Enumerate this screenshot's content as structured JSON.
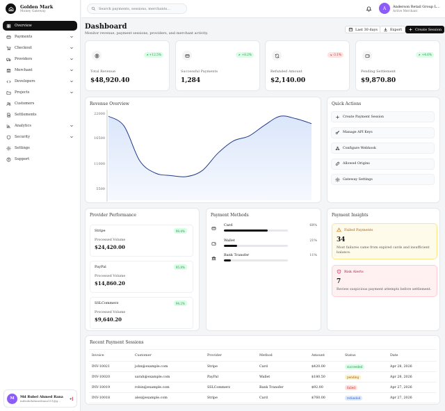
{
  "brand": {
    "name": "Golden Mark",
    "subtitle": "Money Gateway"
  },
  "nav": [
    {
      "label": "Overview",
      "icon": "grid-icon",
      "active": true,
      "chevron": false
    },
    {
      "label": "Payments",
      "icon": "credit-card-icon",
      "chevron": true
    },
    {
      "label": "Checkout",
      "icon": "cart-icon",
      "chevron": true
    },
    {
      "label": "Providers",
      "icon": "truck-icon",
      "chevron": true
    },
    {
      "label": "Merchant",
      "icon": "store-icon",
      "chevron": true
    },
    {
      "label": "Developers",
      "icon": "code-icon",
      "chevron": true
    },
    {
      "label": "Projects",
      "icon": "folder-icon",
      "chevron": true
    },
    {
      "label": "Customers",
      "icon": "users-icon",
      "chevron": false
    },
    {
      "label": "Settlements",
      "icon": "file-icon",
      "chevron": false
    },
    {
      "label": "Analytics",
      "icon": "chart-icon",
      "chevron": true
    },
    {
      "label": "Security",
      "icon": "shield-icon",
      "chevron": true
    },
    {
      "label": "Settings",
      "icon": "gear-icon",
      "chevron": false
    },
    {
      "label": "Support",
      "icon": "help-icon",
      "chevron": false
    }
  ],
  "user": {
    "initial": "M",
    "name": "Md Rubel Ahmed Rana",
    "email": "mdrubelahmedrana151@g..."
  },
  "topbar": {
    "search_placeholder": "Search payments, sessions, merchants...",
    "account_initial": "A",
    "account_name": "Anderson Retail Group L...",
    "account_role": "Active Merchant"
  },
  "header": {
    "title": "Dashboard",
    "subtitle": "Monitor revenue, payment sessions, providers, and merchant activity.",
    "range_label": "Last 30 days",
    "export_label": "Export",
    "create_label": "Create Session"
  },
  "stats": [
    {
      "label": "Total Revenue",
      "value": "$48,920.40",
      "change": "+12.5%",
      "trend": "up",
      "icon": "dollar-icon"
    },
    {
      "label": "Successful Payments",
      "value": "1,284",
      "change": "+8.2%",
      "trend": "up",
      "icon": "credit-card-icon"
    },
    {
      "label": "Refunded Amount",
      "value": "$2,140.00",
      "change": "-3.1%",
      "trend": "down",
      "icon": "refresh-icon"
    },
    {
      "label": "Pending Settlement",
      "value": "$9,870.80",
      "change": "+4.6%",
      "trend": "up",
      "icon": "wallet-icon"
    }
  ],
  "revenue": {
    "title": "Revenue Overview",
    "chart_data": {
      "type": "area",
      "yticks": [
        22000,
        16500,
        11000,
        5500
      ],
      "ylim": [
        4000,
        22000
      ],
      "values": [
        21000,
        19000,
        12000,
        9500,
        9000,
        8800,
        10000,
        13500,
        16000,
        17000,
        19200,
        21000,
        20500,
        19500
      ],
      "color": "#1e3a8a",
      "fill": "#dbe6fb"
    }
  },
  "quick_actions": {
    "title": "Quick Actions",
    "items": [
      {
        "label": "Create Payment Session",
        "icon": "plus-icon"
      },
      {
        "label": "Manage API Keys",
        "icon": "key-icon"
      },
      {
        "label": "Configure Webhook",
        "icon": "webhook-icon"
      },
      {
        "label": "Allowed Origins",
        "icon": "link-icon"
      },
      {
        "label": "Gateway Settings",
        "icon": "gear-icon"
      }
    ]
  },
  "providers": {
    "title": "Provider Performance",
    "volume_label": "Processed Volume",
    "items": [
      {
        "name": "Stripe",
        "rate": "98.4%",
        "volume": "$24,420.00"
      },
      {
        "name": "PayPal",
        "rate": "95.8%",
        "volume": "$14,860.20"
      },
      {
        "name": "SSLCommerz",
        "rate": "94.2%",
        "volume": "$9,640.20"
      }
    ]
  },
  "payment_methods": {
    "title": "Payment Methods",
    "items": [
      {
        "name": "Card",
        "pct": "68%",
        "value": 68,
        "icon": "credit-card-icon"
      },
      {
        "name": "Wallet",
        "pct": "21%",
        "value": 21,
        "icon": "wallet-icon"
      },
      {
        "name": "Bank Transfer",
        "pct": "11%",
        "value": 11,
        "icon": "bank-icon"
      }
    ]
  },
  "insights": {
    "title": "Payment Insights",
    "failed": {
      "label": "Failed Payments",
      "value": "34",
      "text": "Most failures came from expired cards and insufficient balance."
    },
    "risk": {
      "label": "Risk Alerts",
      "value": "7",
      "text": "Review suspicious payment attempts before settlement."
    }
  },
  "sessions": {
    "title": "Recent Payment Sessions",
    "columns": [
      "Invoice",
      "Customer",
      "Provider",
      "Method",
      "Amount",
      "Status",
      "Date"
    ],
    "rows": [
      {
        "invoice": "INV-10021",
        "customer": "john@example.com",
        "provider": "Stripe",
        "method": "Card",
        "amount": "$420.00",
        "status": "succeeded",
        "date": "Apr 28, 2026"
      },
      {
        "invoice": "INV-10020",
        "customer": "sarah@example.com",
        "provider": "PayPal",
        "method": "Wallet",
        "amount": "$180.50",
        "status": "pending",
        "date": "Apr 28, 2026"
      },
      {
        "invoice": "INV-10019",
        "customer": "robin@example.com",
        "provider": "SSLCommerz",
        "method": "Bank Transfer",
        "amount": "$92.00",
        "status": "failed",
        "date": "Apr 27, 2026"
      },
      {
        "invoice": "INV-10018",
        "customer": "alex@example.com",
        "provider": "Stripe",
        "method": "Card",
        "amount": "$760.00",
        "status": "refunded",
        "date": "Apr 27, 2026"
      }
    ]
  }
}
